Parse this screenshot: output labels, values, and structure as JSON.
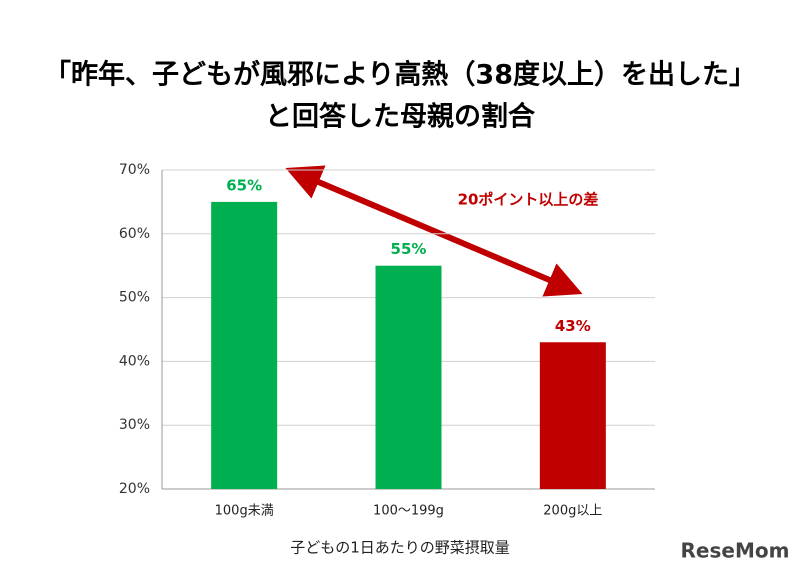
{
  "chart_data": {
    "type": "bar",
    "title": [
      "「昨年、子どもが風邪により高熱（38度以上）を出した」",
      "と回答した母親の割合"
    ],
    "categories": [
      "100g未満",
      "100〜199g",
      "200g以上"
    ],
    "values": [
      65,
      55,
      43
    ],
    "value_labels": [
      "65%",
      "55%",
      "43%"
    ],
    "colors": [
      "#00b050",
      "#00b050",
      "#c00000"
    ],
    "ylim": [
      20,
      70
    ],
    "yticks": [
      {
        "value": 20,
        "label": "20%"
      },
      {
        "value": 30,
        "label": "30%"
      },
      {
        "value": 40,
        "label": "40%"
      },
      {
        "value": 50,
        "label": "50%"
      },
      {
        "value": 60,
        "label": "60%"
      },
      {
        "value": 70,
        "label": "70%"
      }
    ],
    "grid": true,
    "xlabel": "子どもの1日あたりの野菜摂取量",
    "annotation": "20ポイント以上の差",
    "watermark": "ReseMom"
  }
}
